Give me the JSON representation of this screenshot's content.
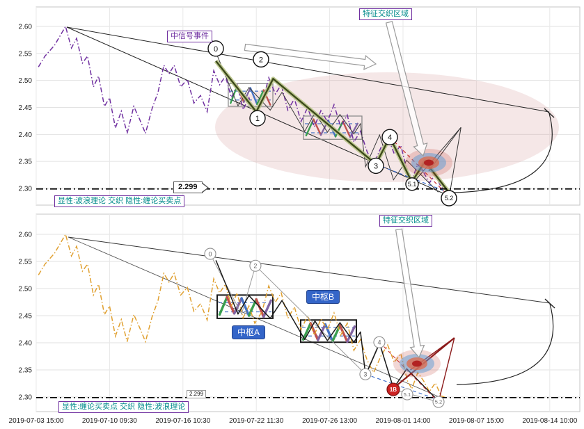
{
  "panels": {
    "top": {
      "event_label": "中信号事件",
      "region_label": "特征交织区域",
      "legend_label": "显性:波浪理论 交织 隐性:缠论买卖点",
      "support_label": "2.299"
    },
    "bottom": {
      "region_label": "特征交织区域",
      "legend_label": "显性:缠论买卖点 交织 隐性:波浪理论",
      "support_label": "2.299",
      "pivot_a_label": "中枢A",
      "pivot_b_label": "中枢B"
    }
  },
  "chart_data": {
    "type": "line",
    "grid": true,
    "x_axis": {
      "tick_labels": [
        "2019-07-03 15:00",
        "2019-07-10 09:30",
        "2019-07-16 10:30",
        "2019-07-22 11:30",
        "2019-07-26 13:00",
        "2019-08-01 14:00",
        "2019-08-07 15:00",
        "2019-08-14 10:00"
      ]
    },
    "y_axis": {
      "tick_labels": [
        "2.60",
        "2.55",
        "2.50",
        "2.45",
        "2.40",
        "2.35",
        "2.30"
      ],
      "tick_values": [
        2.6,
        2.55,
        2.5,
        2.45,
        2.4,
        2.35,
        2.3
      ],
      "range": [
        2.27,
        2.635
      ]
    },
    "support_line": 2.299,
    "colors": {
      "price_top": "#7030a0",
      "price_bottom": "#e0a030",
      "wave_halo": "#b9c48a",
      "wave_core": "#3c4a1a",
      "chan": "#1a1a1a",
      "pivot_box_top": "#8a8a8a",
      "pivot_box_bottom": "#1a1a1a",
      "pivot_inner_dash": "#4472c4",
      "zigzag_palette": [
        "#3a9e4f",
        "#c0504d",
        "#8064a2",
        "#4472c4"
      ],
      "region_ellipse": "#dba8a8",
      "blob_blue": "#5b9bd5",
      "blob_red": "#c0392b",
      "support": "#000000",
      "buy_marker": "#cc2222",
      "accent_teal": "#008b8b",
      "accent_purple": "#7030a0",
      "pivot_label_bg": "#3465c8"
    },
    "series": {
      "price": {
        "name": "price",
        "points": [
          [
            0.03,
            2.525
          ],
          [
            0.12,
            2.545
          ],
          [
            0.25,
            2.565
          ],
          [
            0.4,
            2.6
          ],
          [
            0.48,
            2.56
          ],
          [
            0.55,
            2.578
          ],
          [
            0.63,
            2.532
          ],
          [
            0.7,
            2.545
          ],
          [
            0.78,
            2.488
          ],
          [
            0.85,
            2.508
          ],
          [
            0.93,
            2.452
          ],
          [
            1.0,
            2.468
          ],
          [
            1.08,
            2.412
          ],
          [
            1.16,
            2.443
          ],
          [
            1.24,
            2.402
          ],
          [
            1.33,
            2.452
          ],
          [
            1.41,
            2.428
          ],
          [
            1.49,
            2.402
          ],
          [
            1.58,
            2.448
          ],
          [
            1.66,
            2.478
          ],
          [
            1.74,
            2.528
          ],
          [
            1.81,
            2.512
          ],
          [
            1.88,
            2.528
          ],
          [
            1.97,
            2.488
          ],
          [
            2.06,
            2.502
          ],
          [
            2.15,
            2.458
          ],
          [
            2.24,
            2.472
          ],
          [
            2.33,
            2.442
          ],
          [
            2.42,
            2.518
          ],
          [
            2.5,
            2.492
          ],
          [
            2.58,
            2.508
          ],
          [
            2.66,
            2.468
          ],
          [
            2.74,
            2.492
          ],
          [
            2.82,
            2.446
          ],
          [
            2.9,
            2.468
          ],
          [
            2.98,
            2.436
          ],
          [
            3.08,
            2.458
          ],
          [
            3.17,
            2.505
          ],
          [
            3.26,
            2.475
          ],
          [
            3.34,
            2.492
          ],
          [
            3.43,
            2.445
          ],
          [
            3.52,
            2.466
          ],
          [
            3.61,
            2.424
          ],
          [
            3.7,
            2.45
          ],
          [
            3.79,
            2.414
          ],
          [
            3.88,
            2.444
          ],
          [
            3.97,
            2.424
          ],
          [
            4.06,
            2.455
          ],
          [
            4.15,
            2.414
          ],
          [
            4.24,
            2.436
          ],
          [
            4.33,
            2.386
          ],
          [
            4.42,
            2.406
          ],
          [
            4.51,
            2.368
          ],
          [
            4.6,
            2.345
          ],
          [
            4.7,
            2.376
          ],
          [
            4.79,
            2.396
          ],
          [
            4.88,
            2.364
          ],
          [
            4.97,
            2.38
          ],
          [
            5.06,
            2.33
          ],
          [
            5.12,
            2.315
          ],
          [
            5.2,
            2.345
          ],
          [
            5.28,
            2.33
          ],
          [
            5.36,
            2.31
          ],
          [
            5.44,
            2.326
          ],
          [
            5.52,
            2.302
          ],
          [
            5.6,
            2.298
          ]
        ]
      },
      "wave_count": {
        "name": "wave-theory-count",
        "points": [
          [
            2.45,
            2.536
          ],
          [
            3.0,
            2.442
          ],
          [
            3.23,
            2.503
          ],
          [
            4.63,
            2.345
          ],
          [
            4.82,
            2.395
          ],
          [
            5.12,
            2.312
          ],
          [
            5.3,
            2.35
          ],
          [
            5.63,
            2.292
          ]
        ]
      },
      "chan_segments": {
        "name": "chan-segments",
        "points": [
          [
            2.45,
            2.552
          ],
          [
            2.75,
            2.453
          ],
          [
            2.9,
            2.487
          ],
          [
            3.19,
            2.445
          ],
          [
            3.35,
            2.478
          ],
          [
            3.66,
            2.406
          ],
          [
            3.8,
            2.44
          ],
          [
            3.97,
            2.404
          ],
          [
            4.14,
            2.437
          ],
          [
            4.33,
            2.401
          ],
          [
            4.42,
            2.42
          ],
          [
            4.49,
            2.34
          ],
          [
            4.68,
            2.399
          ],
          [
            4.87,
            2.316
          ],
          [
            5.05,
            2.352
          ],
          [
            5.48,
            2.293
          ]
        ]
      },
      "wave_thin": {
        "name": "wave-count-hidden",
        "points": [
          [
            2.37,
            2.564
          ],
          [
            2.8,
            2.453
          ],
          [
            2.99,
            2.542
          ],
          [
            4.49,
            2.342
          ],
          [
            4.68,
            2.401
          ],
          [
            4.87,
            2.314
          ],
          [
            5.48,
            2.291
          ]
        ]
      },
      "zigzag_top_1": {
        "points": [
          [
            2.65,
            2.458
          ],
          [
            2.74,
            2.49
          ],
          [
            2.83,
            2.46
          ],
          [
            2.92,
            2.486
          ],
          [
            3.01,
            2.456
          ],
          [
            3.1,
            2.482
          ],
          [
            3.19,
            2.455
          ]
        ]
      },
      "zigzag_top_2": {
        "points": [
          [
            3.68,
            2.398
          ],
          [
            3.78,
            2.428
          ],
          [
            3.88,
            2.399
          ],
          [
            3.98,
            2.426
          ],
          [
            4.08,
            2.396
          ],
          [
            4.18,
            2.424
          ],
          [
            4.28,
            2.395
          ],
          [
            4.38,
            2.42
          ]
        ]
      },
      "zigzag_bottom_a": {
        "points": [
          [
            2.5,
            2.452
          ],
          [
            2.6,
            2.484
          ],
          [
            2.7,
            2.454
          ],
          [
            2.8,
            2.482
          ],
          [
            2.9,
            2.45
          ],
          [
            3.0,
            2.48
          ],
          [
            3.1,
            2.448
          ],
          [
            3.2,
            2.478
          ]
        ]
      },
      "zigzag_bottom_b": {
        "points": [
          [
            3.64,
            2.406
          ],
          [
            3.74,
            2.436
          ],
          [
            3.84,
            2.405
          ],
          [
            3.94,
            2.434
          ],
          [
            4.04,
            2.403
          ],
          [
            4.14,
            2.432
          ],
          [
            4.24,
            2.402
          ],
          [
            4.34,
            2.43
          ]
        ]
      }
    },
    "pivots_top": [
      {
        "t0": 2.618,
        "p0": 2.494,
        "t1": 3.226,
        "p1": 2.452
      },
      {
        "t0": 3.643,
        "p0": 2.434,
        "t1": 4.44,
        "p1": 2.391
      }
    ],
    "pivots_bottom": [
      {
        "t0": 2.467,
        "p0": 2.488,
        "t1": 3.226,
        "p1": 2.445
      },
      {
        "t0": 3.605,
        "p0": 2.442,
        "t1": 4.364,
        "p1": 2.401
      }
    ],
    "wave_markers_top": [
      {
        "t": 2.448,
        "p": 2.559,
        "label": "0",
        "r": 11
      },
      {
        "t": 3.017,
        "p": 2.43,
        "label": "1",
        "r": 11
      },
      {
        "t": 3.064,
        "p": 2.539,
        "label": "2",
        "r": 11
      },
      {
        "t": 4.63,
        "p": 2.342,
        "label": "3",
        "r": 11
      },
      {
        "t": 4.82,
        "p": 2.395,
        "label": "4",
        "r": 11
      },
      {
        "t": 5.123,
        "p": 2.308,
        "label": "5.1",
        "r": 9
      },
      {
        "t": 5.626,
        "p": 2.282,
        "label": "5.2",
        "r": 11
      }
    ],
    "wave_markers_bottom": [
      {
        "t": 2.372,
        "p": 2.564,
        "label": "0",
        "r": 8
      },
      {
        "t": 2.988,
        "p": 2.542,
        "label": "2",
        "r": 8
      },
      {
        "t": 4.487,
        "p": 2.342,
        "label": "3",
        "r": 8
      },
      {
        "t": 4.677,
        "p": 2.401,
        "label": "4",
        "r": 8
      },
      {
        "t": 5.057,
        "p": 2.305,
        "label": "5.1",
        "r": 8
      },
      {
        "t": 5.484,
        "p": 2.291,
        "label": "5.2",
        "r": 8
      }
    ],
    "buy_marker": {
      "t": 4.867,
      "p": 2.314,
      "label": "1B",
      "r": 9
    }
  }
}
